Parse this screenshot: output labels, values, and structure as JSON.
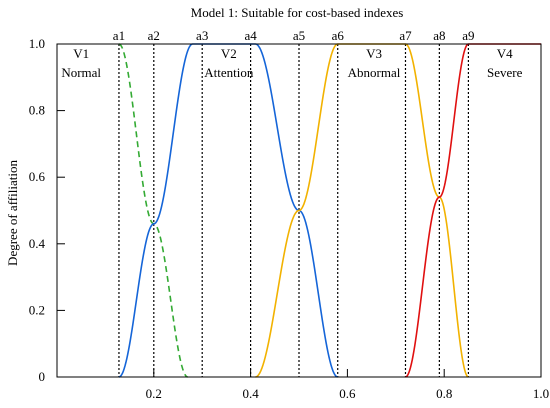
{
  "chart_data": {
    "type": "line",
    "title": "Model 1: Suitable for cost-based indexes",
    "xlabel": "",
    "ylabel": "Degree of affiliation",
    "xlim": [
      0.0,
      1.0
    ],
    "ylim": [
      0.0,
      1.0
    ],
    "x_ticks": [
      {
        "value": 0.2,
        "label": "0.2"
      },
      {
        "value": 0.4,
        "label": "0.4"
      },
      {
        "value": 0.6,
        "label": "0.6"
      },
      {
        "value": 0.8,
        "label": "0.8"
      },
      {
        "value": 1.0,
        "label": "1.0"
      }
    ],
    "y_ticks": [
      {
        "value": 0.0,
        "label": "0"
      },
      {
        "value": 0.2,
        "label": "0.2"
      },
      {
        "value": 0.4,
        "label": "0.4"
      },
      {
        "value": 0.6,
        "label": "0.6"
      },
      {
        "value": 0.8,
        "label": "0.8"
      },
      {
        "value": 1.0,
        "label": "1.0"
      }
    ],
    "thresholds": [
      {
        "label": "a1",
        "x": 0.128
      },
      {
        "label": "a2",
        "x": 0.2
      },
      {
        "label": "a3",
        "x": 0.3
      },
      {
        "label": "a4",
        "x": 0.4
      },
      {
        "label": "a5",
        "x": 0.5
      },
      {
        "label": "a6",
        "x": 0.58
      },
      {
        "label": "a7",
        "x": 0.72
      },
      {
        "label": "a8",
        "x": 0.79
      },
      {
        "label": "a9",
        "x": 0.85
      }
    ],
    "regions": [
      {
        "name": "V1",
        "desc": "Normal",
        "x": 0.05
      },
      {
        "name": "V2",
        "desc": "Attention",
        "x": 0.355
      },
      {
        "name": "V3",
        "desc": "Abnormal",
        "x": 0.655
      },
      {
        "name": "V4",
        "desc": "Severe",
        "x": 0.925
      }
    ],
    "series": [
      {
        "color": "#33aa33",
        "dashed": true,
        "points": [
          [
            0.128,
            1.0
          ],
          [
            0.2,
            0.46
          ],
          [
            0.27,
            0.0
          ]
        ]
      },
      {
        "color": "#1565d8",
        "dashed": false,
        "points": [
          [
            0.128,
            0.0
          ],
          [
            0.2,
            0.46
          ],
          [
            0.28,
            1.0
          ],
          [
            0.41,
            1.0
          ],
          [
            0.5,
            0.5
          ],
          [
            0.58,
            0.0
          ]
        ]
      },
      {
        "color": "#f2b200",
        "dashed": false,
        "points": [
          [
            0.41,
            0.0
          ],
          [
            0.5,
            0.5
          ],
          [
            0.58,
            1.0
          ],
          [
            0.72,
            1.0
          ],
          [
            0.79,
            0.54
          ],
          [
            0.85,
            0.0
          ]
        ]
      },
      {
        "color": "#e01010",
        "dashed": false,
        "points": [
          [
            0.72,
            0.0
          ],
          [
            0.79,
            0.54
          ],
          [
            0.85,
            1.0
          ],
          [
            1.0,
            1.0
          ]
        ]
      }
    ]
  }
}
